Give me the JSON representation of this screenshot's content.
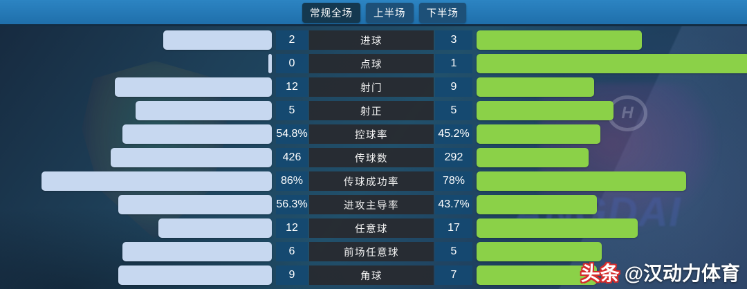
{
  "header": {
    "tabs": [
      {
        "label": "常规全场",
        "active": true
      },
      {
        "label": "上半场",
        "active": false
      },
      {
        "label": "下半场",
        "active": false
      }
    ]
  },
  "stats": {
    "rows": [
      {
        "label": "进球",
        "home": "2",
        "away": "3",
        "home_bar_pct": 39.5,
        "away_bar_pct": 60.4
      },
      {
        "label": "点球",
        "home": "0",
        "away": "1",
        "home_bar_pct": 1.3,
        "away_bar_pct": 100
      },
      {
        "label": "射门",
        "home": "12",
        "away": "9",
        "home_bar_pct": 57.1,
        "away_bar_pct": 43.0
      },
      {
        "label": "射正",
        "home": "5",
        "away": "5",
        "home_bar_pct": 49.7,
        "away_bar_pct": 50.1
      },
      {
        "label": "控球率",
        "home": "54.8%",
        "away": "45.2%",
        "home_bar_pct": 54.5,
        "away_bar_pct": 45.4
      },
      {
        "label": "传球数",
        "home": "426",
        "away": "292",
        "home_bar_pct": 58.8,
        "away_bar_pct": 41.0
      },
      {
        "label": "传球成功率",
        "home": "86%",
        "away": "78%",
        "home_bar_pct": 84.0,
        "away_bar_pct": 76.8
      },
      {
        "label": "进攻主导率",
        "home": "56.3%",
        "away": "43.7%",
        "home_bar_pct": 55.9,
        "away_bar_pct": 44.0
      },
      {
        "label": "任意球",
        "home": "12",
        "away": "17",
        "home_bar_pct": 41.3,
        "away_bar_pct": 59.0
      },
      {
        "label": "前场任意球",
        "home": "6",
        "away": "5",
        "home_bar_pct": 54.4,
        "away_bar_pct": 45.8
      },
      {
        "label": "角球",
        "home": "9",
        "away": "7",
        "home_bar_pct": 55.9,
        "away_bar_pct": 44.0
      }
    ]
  },
  "watermark": {
    "brand": "头条",
    "handle": "@汉动力体育"
  },
  "background": {
    "faded_text": "ANGDAI",
    "ring_glyph": "H"
  },
  "colors": {
    "home_bar": "#c7d8f0",
    "away_bar": "#8bd148",
    "tab_active": "#14384f",
    "tab_inactive": "#1d5078"
  }
}
